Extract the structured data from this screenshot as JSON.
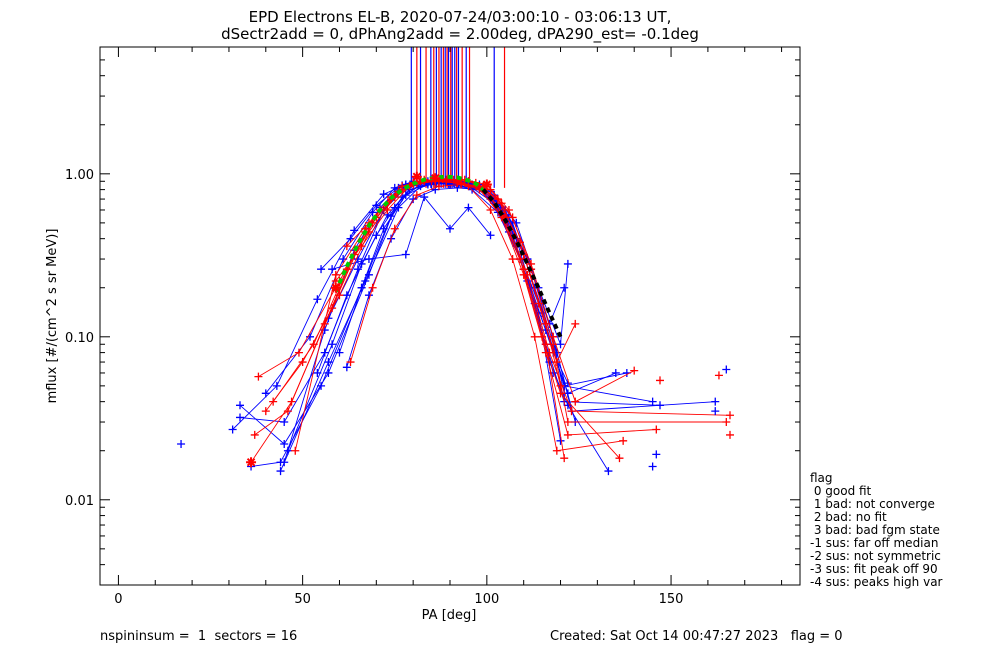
{
  "chart_data": {
    "type": "line",
    "title": "EPD Electrons EL-B, 2020-07-24/03:00:10 - 03:06:13 UT,",
    "subtitle": "dSectr2add = 0, dPhAng2add = 2.00deg, dPA290_est=  -0.1deg",
    "xlabel": "PA [deg]",
    "ylabel": "mflux [#/(cm^2 s sr MeV)]",
    "xlim": [
      -5,
      185
    ],
    "ylim": [
      0.003,
      6
    ],
    "yscale": "log",
    "x_ticks": [
      0,
      50,
      100,
      150
    ],
    "x_tick_labels": [
      "0",
      "50",
      "100",
      "150"
    ],
    "y_ticks": [
      0.01,
      0.1,
      1.0
    ],
    "y_tick_labels": [
      "0.01",
      "0.10",
      "1.00"
    ],
    "grid": false,
    "colors": {
      "blue": "#0000ff",
      "red": "#ff0000",
      "green": "#00cc00",
      "black": "#000000"
    },
    "vertical_lines": {
      "blue": [
        79.5,
        82,
        84.8,
        86.3,
        87.6,
        88.7,
        89.6,
        90.6,
        91.3,
        92.3,
        94.4,
        102
      ],
      "red": [
        81,
        83.5,
        85.6,
        87,
        88.2,
        89.2,
        90.2,
        91.8,
        93.3,
        95.3,
        104.8
      ]
    },
    "series": [
      {
        "color": "blue",
        "x": [
          33,
          45,
          57,
          68,
          75,
          80,
          86,
          92,
          98,
          104,
          111,
          117,
          122,
          133
        ],
        "y": [
          0.038,
          0.022,
          0.06,
          0.24,
          0.62,
          0.86,
          0.89,
          0.9,
          0.86,
          0.62,
          0.22,
          0.07,
          0.038,
          0.015
        ]
      },
      {
        "color": "blue",
        "x": [
          36,
          44,
          55,
          66,
          74,
          79,
          85,
          91,
          97,
          104,
          110,
          116,
          121,
          147
        ],
        "y": [
          0.016,
          0.017,
          0.05,
          0.2,
          0.55,
          0.8,
          0.86,
          0.88,
          0.84,
          0.6,
          0.26,
          0.09,
          0.04,
          0.038
        ]
      },
      {
        "color": "blue",
        "x": [
          45,
          56,
          64,
          71,
          77,
          82,
          88,
          95,
          101,
          107,
          113,
          118
        ],
        "y": [
          0.017,
          0.11,
          0.34,
          0.62,
          0.85,
          0.9,
          0.91,
          0.88,
          0.72,
          0.42,
          0.16,
          0.06
        ]
      },
      {
        "color": "blue",
        "x": [
          46,
          58,
          66,
          73,
          79,
          84,
          90,
          96,
          102,
          108,
          114,
          120
        ],
        "y": [
          0.02,
          0.09,
          0.28,
          0.56,
          0.8,
          0.87,
          0.9,
          0.86,
          0.7,
          0.4,
          0.14,
          0.023
        ]
      },
      {
        "color": "blue",
        "x": [
          44,
          57,
          67,
          76,
          82,
          87,
          93,
          99,
          105,
          111,
          117,
          121
        ],
        "y": [
          0.015,
          0.07,
          0.22,
          0.62,
          0.84,
          0.89,
          0.88,
          0.82,
          0.6,
          0.3,
          0.12,
          0.045
        ]
      },
      {
        "color": "blue",
        "x": [
          40,
          52,
          61,
          69,
          75,
          80,
          86,
          93,
          99,
          106,
          112,
          118,
          123,
          162
        ],
        "y": [
          0.045,
          0.1,
          0.3,
          0.58,
          0.82,
          0.9,
          0.92,
          0.9,
          0.84,
          0.54,
          0.26,
          0.1,
          0.035,
          0.04
        ]
      },
      {
        "color": "blue",
        "x": [
          31,
          43,
          54,
          64,
          72,
          78,
          84,
          90,
          96,
          103,
          109,
          116,
          122,
          135
        ],
        "y": [
          0.027,
          0.05,
          0.17,
          0.45,
          0.75,
          0.86,
          0.88,
          0.87,
          0.8,
          0.58,
          0.3,
          0.11,
          0.045,
          0.06
        ]
      },
      {
        "color": "blue",
        "x": [
          55,
          63,
          70,
          76,
          81,
          87,
          93,
          99,
          105,
          111,
          117,
          121
        ],
        "y": [
          0.26,
          0.4,
          0.64,
          0.82,
          0.9,
          0.88,
          0.86,
          0.8,
          0.56,
          0.3,
          0.12,
          0.2
        ]
      },
      {
        "color": "blue",
        "x": [
          57,
          65,
          72,
          78,
          84,
          90,
          96,
          102,
          108,
          114,
          120,
          122
        ],
        "y": [
          0.13,
          0.3,
          0.6,
          0.86,
          0.9,
          0.87,
          0.82,
          0.74,
          0.5,
          0.2,
          0.09,
          0.28
        ]
      },
      {
        "color": "blue",
        "x": [
          60,
          66,
          72,
          78,
          84,
          90,
          96,
          101,
          106,
          112,
          118,
          122
        ],
        "y": [
          0.08,
          0.2,
          0.46,
          0.74,
          0.86,
          0.9,
          0.86,
          0.7,
          0.44,
          0.2,
          0.08,
          0.052
        ]
      },
      {
        "color": "blue",
        "x": [
          62,
          68,
          74,
          80,
          86,
          92,
          98,
          104,
          110,
          116,
          121,
          138
        ],
        "y": [
          0.065,
          0.18,
          0.4,
          0.7,
          0.8,
          0.82,
          0.8,
          0.6,
          0.32,
          0.12,
          0.05,
          0.06
        ]
      },
      {
        "color": "blue",
        "x": [
          33,
          45,
          56,
          65,
          72,
          78,
          84,
          90,
          96,
          102,
          108,
          115,
          121,
          145
        ],
        "y": [
          0.032,
          0.03,
          0.08,
          0.26,
          0.6,
          0.82,
          0.88,
          0.86,
          0.82,
          0.66,
          0.36,
          0.14,
          0.05,
          0.04
        ]
      },
      {
        "color": "blue",
        "x": [
          58,
          68,
          78,
          83,
          90,
          95,
          101
        ],
        "y": [
          0.26,
          0.3,
          0.32,
          0.72,
          0.46,
          0.62,
          0.42
        ]
      },
      {
        "color": "blue",
        "x": [
          54,
          62,
          70,
          77,
          83,
          89,
          95,
          101,
          107,
          113,
          119,
          124
        ],
        "y": [
          0.06,
          0.18,
          0.42,
          0.72,
          0.88,
          0.92,
          0.9,
          0.78,
          0.5,
          0.2,
          0.08,
          0.03
        ]
      },
      {
        "color": "red",
        "x": [
          38,
          49,
          60,
          69,
          76,
          82,
          88,
          94,
          100,
          106,
          112,
          118,
          124,
          140
        ],
        "y": [
          0.057,
          0.08,
          0.22,
          0.5,
          0.78,
          0.9,
          0.93,
          0.92,
          0.86,
          0.6,
          0.28,
          0.1,
          0.04,
          0.062
        ]
      },
      {
        "color": "red",
        "x": [
          36,
          47,
          58,
          67,
          74,
          80,
          86,
          92,
          98,
          104,
          110,
          116,
          122,
          146
        ],
        "y": [
          0.017,
          0.04,
          0.15,
          0.44,
          0.7,
          0.88,
          0.91,
          0.9,
          0.82,
          0.54,
          0.24,
          0.08,
          0.025,
          0.027
        ]
      },
      {
        "color": "red",
        "x": [
          37,
          46,
          56,
          64,
          71,
          77,
          83,
          89,
          95,
          101,
          107,
          113,
          119,
          137
        ],
        "y": [
          0.025,
          0.035,
          0.12,
          0.32,
          0.6,
          0.84,
          0.92,
          0.9,
          0.84,
          0.6,
          0.3,
          0.1,
          0.02,
          0.023
        ]
      },
      {
        "color": "red",
        "x": [
          48,
          59,
          67,
          74,
          80,
          86,
          92,
          98,
          104,
          110,
          116,
          121
        ],
        "y": [
          0.02,
          0.24,
          0.46,
          0.72,
          0.88,
          0.9,
          0.88,
          0.8,
          0.56,
          0.26,
          0.09,
          0.018
        ]
      },
      {
        "color": "red",
        "x": [
          40,
          50,
          60,
          68,
          75,
          81,
          87,
          93,
          99,
          105,
          111,
          117,
          123,
          166
        ],
        "y": [
          0.035,
          0.07,
          0.18,
          0.44,
          0.72,
          0.88,
          0.9,
          0.88,
          0.8,
          0.54,
          0.24,
          0.08,
          0.035,
          0.033
        ]
      },
      {
        "color": "red",
        "x": [
          62,
          68,
          74,
          80,
          86,
          92,
          98,
          104,
          110,
          116,
          120
        ],
        "y": [
          0.36,
          0.5,
          0.72,
          0.86,
          0.9,
          0.88,
          0.84,
          0.66,
          0.32,
          0.12,
          0.05
        ]
      },
      {
        "color": "red",
        "x": [
          63,
          69,
          75,
          81,
          87,
          93,
          99,
          104,
          109,
          115,
          120,
          136
        ],
        "y": [
          0.07,
          0.2,
          0.46,
          0.74,
          0.84,
          0.86,
          0.84,
          0.58,
          0.3,
          0.1,
          0.045,
          0.018
        ]
      },
      {
        "color": "red",
        "x": [
          59,
          66,
          73,
          79,
          85,
          91,
          97,
          103,
          109,
          114,
          119,
          124
        ],
        "y": [
          0.22,
          0.36,
          0.6,
          0.84,
          0.9,
          0.92,
          0.88,
          0.7,
          0.38,
          0.16,
          0.07,
          0.12
        ]
      },
      {
        "color": "red",
        "x": [
          42,
          53,
          62,
          70,
          77,
          83,
          89,
          95,
          101,
          107,
          112,
          118,
          122,
          165
        ],
        "y": [
          0.04,
          0.09,
          0.26,
          0.54,
          0.8,
          0.9,
          0.92,
          0.9,
          0.8,
          0.54,
          0.26,
          0.09,
          0.03,
          0.03
        ]
      }
    ],
    "fit_curves": [
      {
        "color": "green",
        "style": "dashed",
        "x": [
          59,
          62,
          65,
          68,
          71,
          74,
          77,
          80,
          83,
          86,
          89,
          92,
          95,
          97,
          99
        ],
        "y": [
          0.19,
          0.27,
          0.37,
          0.48,
          0.6,
          0.71,
          0.8,
          0.87,
          0.92,
          0.95,
          0.96,
          0.95,
          0.91,
          0.87,
          0.8
        ]
      },
      {
        "color": "black",
        "style": "dashed",
        "x": [
          99,
          102,
          105,
          108,
          111,
          114,
          117,
          120
        ],
        "y": [
          0.8,
          0.67,
          0.52,
          0.39,
          0.28,
          0.2,
          0.14,
          0.1
        ]
      }
    ],
    "isolated_markers": [
      {
        "color": "blue",
        "x": 17,
        "y": 0.022
      },
      {
        "color": "blue",
        "x": 145,
        "y": 0.016
      },
      {
        "color": "blue",
        "x": 146,
        "y": 0.019
      },
      {
        "color": "red",
        "x": 147,
        "y": 0.054
      },
      {
        "color": "red",
        "x": 163,
        "y": 0.058
      },
      {
        "color": "blue",
        "x": 165,
        "y": 0.063
      },
      {
        "color": "red",
        "x": 166,
        "y": 0.025
      },
      {
        "color": "blue",
        "x": 162,
        "y": 0.035
      }
    ],
    "star_markers": [
      {
        "x": 59,
        "y": 0.2
      },
      {
        "x": 81,
        "y": 0.96
      },
      {
        "x": 86,
        "y": 0.94
      },
      {
        "x": 100,
        "y": 0.86
      },
      {
        "x": 36,
        "y": 0.017
      }
    ],
    "legend": {
      "placement": "right",
      "title": "flag",
      "entries": [
        " 0 good fit",
        " 1 bad: not converge",
        " 2 bad: no fit",
        " 3 bad: bad fgm state",
        "-1 sus: far off median",
        "-2 sus: not symmetric",
        "-3 sus: fit peak off 90",
        "-4 sus: peaks high var"
      ]
    }
  },
  "footer": {
    "left": "nspininsum =  1  sectors = 16",
    "right": "Created: Sat Oct 14 00:47:27 2023   flag = 0"
  }
}
